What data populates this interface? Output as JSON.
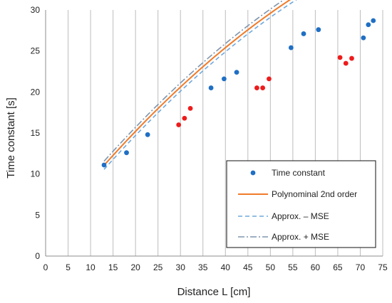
{
  "chart_data": {
    "type": "scatter",
    "xlabel": "Distance L [cm]",
    "ylabel": "Time constant  [s]",
    "xlim": [
      0,
      75
    ],
    "ylim": [
      0,
      30
    ],
    "x_ticks": [
      0,
      5,
      10,
      15,
      20,
      25,
      30,
      35,
      40,
      45,
      50,
      55,
      60,
      65,
      70,
      75
    ],
    "y_ticks": [
      0,
      5,
      10,
      15,
      20,
      25,
      30
    ],
    "grid": "vertical",
    "legend_position": "bottom-right",
    "series": [
      {
        "name": "Time constant",
        "kind": "scatter",
        "color": "#1f6fc4",
        "points": [
          [
            13,
            11.1
          ],
          [
            18,
            12.6
          ],
          [
            22.7,
            14.8
          ],
          [
            36.8,
            20.5
          ],
          [
            39.7,
            21.6
          ],
          [
            42.5,
            22.4
          ],
          [
            54.6,
            25.4
          ],
          [
            57.4,
            27.1
          ],
          [
            60.7,
            27.6
          ],
          [
            70.7,
            26.6
          ],
          [
            71.8,
            28.2
          ],
          [
            72.9,
            28.7
          ]
        ]
      },
      {
        "name": "",
        "kind": "scatter",
        "color": "#ee1b1b",
        "points": [
          [
            29.6,
            16.0
          ],
          [
            30.9,
            16.8
          ],
          [
            32.2,
            18.0
          ],
          [
            47.0,
            20.5
          ],
          [
            48.3,
            20.5
          ],
          [
            49.7,
            21.6
          ],
          [
            65.5,
            24.2
          ],
          [
            66.8,
            23.5
          ],
          [
            68.1,
            24.1
          ]
        ]
      },
      {
        "name": "Polynominal 2nd order",
        "kind": "line",
        "style": "solid",
        "color": "#f07b2a",
        "x_range": [
          13,
          72
        ],
        "coefficients": [
          -0.003,
          0.69,
          2.6
        ]
      },
      {
        "name": "Approx. – MSE",
        "kind": "line",
        "style": "dashed",
        "color": "#6fa8dc",
        "x_range": [
          13,
          72
        ],
        "coefficients": [
          -0.003,
          0.69,
          2.1
        ]
      },
      {
        "name": "Approx. + MSE",
        "kind": "line",
        "style": "dashdot",
        "color": "#7f95ad",
        "x_range": [
          13,
          72
        ],
        "coefficients": [
          -0.003,
          0.69,
          3.1
        ]
      }
    ],
    "legend": [
      {
        "label": "Time constant",
        "marker": "dot",
        "color": "#1f6fc4"
      },
      {
        "label": "Polynominal 2nd order",
        "marker": "solid",
        "color": "#f07b2a"
      },
      {
        "label": "Approx. – MSE",
        "marker": "dashed",
        "color": "#6fa8dc"
      },
      {
        "label": "Approx. + MSE",
        "marker": "dashdot",
        "color": "#7f95ad"
      }
    ]
  }
}
